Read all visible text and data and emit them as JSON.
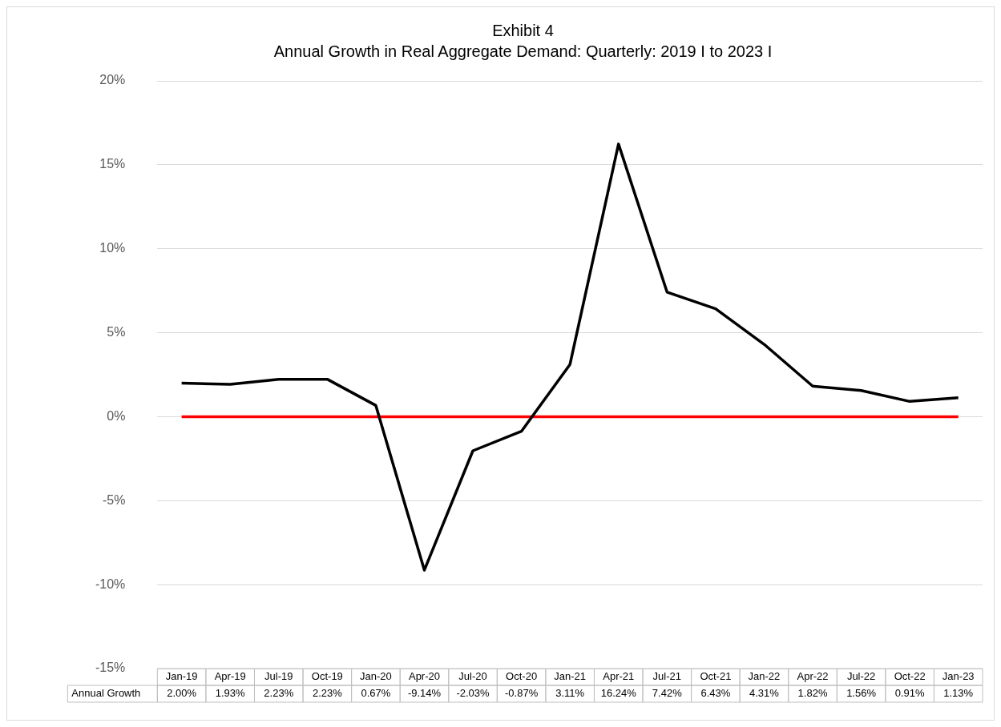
{
  "chart_data": {
    "type": "line",
    "title": "Exhibit 4",
    "subtitle": "Annual Growth in Real Aggregate Demand: Quarterly: 2019 I to 2023 I",
    "categories": [
      "Jan-19",
      "Apr-19",
      "Jul-19",
      "Oct-19",
      "Jan-20",
      "Apr-20",
      "Jul-20",
      "Oct-20",
      "Jan-21",
      "Apr-21",
      "Jul-21",
      "Oct-21",
      "Jan-22",
      "Apr-22",
      "Jul-22",
      "Oct-22",
      "Jan-23"
    ],
    "series": [
      {
        "name": "Annual Growth",
        "color": "#000000",
        "values": [
          2.0,
          1.93,
          2.23,
          2.23,
          0.67,
          -9.14,
          -2.03,
          -0.87,
          3.11,
          16.24,
          7.42,
          6.43,
          4.31,
          1.82,
          1.56,
          0.91,
          1.13
        ],
        "value_labels": [
          "2.00%",
          "1.93%",
          "2.23%",
          "2.23%",
          "0.67%",
          "-9.14%",
          "-2.03%",
          "-0.87%",
          "3.11%",
          "16.24%",
          "7.42%",
          "6.43%",
          "4.31%",
          "1.82%",
          "1.56%",
          "0.91%",
          "1.13%"
        ]
      }
    ],
    "ylim": [
      -15,
      20
    ],
    "yticks": [
      {
        "value": -15,
        "label": "-15%"
      },
      {
        "value": -10,
        "label": "-10%"
      },
      {
        "value": -5,
        "label": "-5%"
      },
      {
        "value": 0,
        "label": "0%"
      },
      {
        "value": 5,
        "label": "5%"
      },
      {
        "value": 10,
        "label": "10%"
      },
      {
        "value": 15,
        "label": "15%"
      },
      {
        "value": 20,
        "label": "20%"
      }
    ],
    "ref_lines": [
      {
        "axis": "y",
        "value": 0,
        "color": "#ff0000",
        "line_style": "solid"
      }
    ],
    "grid": "y",
    "legend": false,
    "marker": "none",
    "line_style": "solid"
  }
}
